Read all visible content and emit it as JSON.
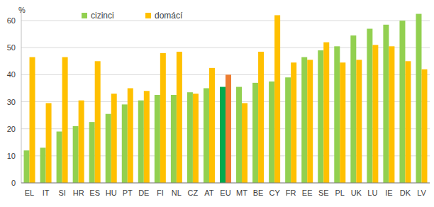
{
  "chart_data": {
    "type": "bar",
    "y_label": "%",
    "categories": [
      "EL",
      "IT",
      "SI",
      "HR",
      "ES",
      "HU",
      "PT",
      "DE",
      "FI",
      "NL",
      "CZ",
      "AT",
      "EU",
      "MT",
      "BE",
      "CY",
      "FR",
      "EE",
      "SE",
      "PL",
      "UK",
      "LU",
      "IE",
      "DK",
      "LV"
    ],
    "series": [
      {
        "name": "cizinci",
        "color": "#92d050",
        "colors": [
          "#92d050",
          "#92d050",
          "#92d050",
          "#92d050",
          "#92d050",
          "#92d050",
          "#92d050",
          "#92d050",
          "#92d050",
          "#92d050",
          "#92d050",
          "#92d050",
          "#00a94f",
          "#92d050",
          "#92d050",
          "#92d050",
          "#92d050",
          "#92d050",
          "#92d050",
          "#92d050",
          "#92d050",
          "#92d050",
          "#92d050",
          "#92d050",
          "#92d050"
        ],
        "values": [
          12,
          13,
          19,
          21,
          22.5,
          25.5,
          29,
          30.5,
          32.5,
          32.5,
          33.5,
          35,
          35.5,
          35.5,
          37,
          37.5,
          39,
          46.5,
          49,
          50.5,
          54.5,
          57,
          58.5,
          60,
          62.5
        ]
      },
      {
        "name": "domácí",
        "color": "#ffc000",
        "colors": [
          "#ffc000",
          "#ffc000",
          "#ffc000",
          "#ffc000",
          "#ffc000",
          "#ffc000",
          "#ffc000",
          "#ffc000",
          "#ffc000",
          "#ffc000",
          "#ffc000",
          "#ffc000",
          "#ed7d31",
          "#ffc000",
          "#ffc000",
          "#ffc000",
          "#ffc000",
          "#ffc000",
          "#ffc000",
          "#ffc000",
          "#ffc000",
          "#ffc000",
          "#ffc000",
          "#ffc000",
          "#ffc000"
        ],
        "values": [
          46.5,
          29.5,
          46.5,
          30.5,
          45,
          33,
          35,
          34,
          48,
          48.5,
          33,
          42.5,
          40,
          29.5,
          48.5,
          62,
          44.5,
          45.5,
          52,
          44.5,
          45.5,
          51,
          50.5,
          45,
          42
        ]
      }
    ],
    "ylim": [
      0,
      65
    ],
    "yticks": [
      0,
      10,
      20,
      30,
      40,
      50,
      60
    ],
    "grid": true,
    "legend": "upper left"
  }
}
